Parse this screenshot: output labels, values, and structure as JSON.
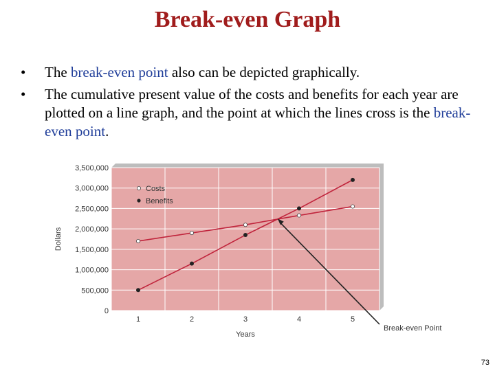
{
  "slide": {
    "title": "Break-even Graph",
    "bullets": [
      {
        "bullet": "•",
        "parts": [
          "The ",
          "break-even point",
          " also can be depicted graphically."
        ]
      },
      {
        "bullet": "•",
        "parts": [
          "The cumulative present value of the costs and benefits for each year are plotted on a line graph, and the point at which the lines cross is the ",
          "break-even point",
          "."
        ]
      }
    ],
    "page_number": "73"
  },
  "colors": {
    "title": "#a01c1c",
    "highlight": "#1f3d99",
    "plot_background": "#e5a7a7",
    "line": "#c0243c"
  },
  "chart_data": {
    "type": "line",
    "x": [
      1,
      2,
      3,
      4,
      5
    ],
    "xlabel": "Years",
    "ylabel": "Dollars",
    "ylim": [
      0,
      3500000
    ],
    "yticks": [
      "0",
      "500,000",
      "1,000,000",
      "1,500,000",
      "2,000,000",
      "2,500,000",
      "3,000,000",
      "3,500,000"
    ],
    "xticks": [
      "1",
      "2",
      "3",
      "4",
      "5"
    ],
    "grid": true,
    "legend_position": "top-left",
    "series": [
      {
        "name": "Costs",
        "marker": "open-circle",
        "values": [
          1700000,
          1900000,
          2100000,
          2330000,
          2550000
        ]
      },
      {
        "name": "Benefits",
        "marker": "filled-circle",
        "values": [
          500000,
          1150000,
          1850000,
          2500000,
          3200000
        ]
      }
    ],
    "annotation": {
      "text": "Break-even Point",
      "x": 3.6,
      "y": 2250000
    }
  }
}
